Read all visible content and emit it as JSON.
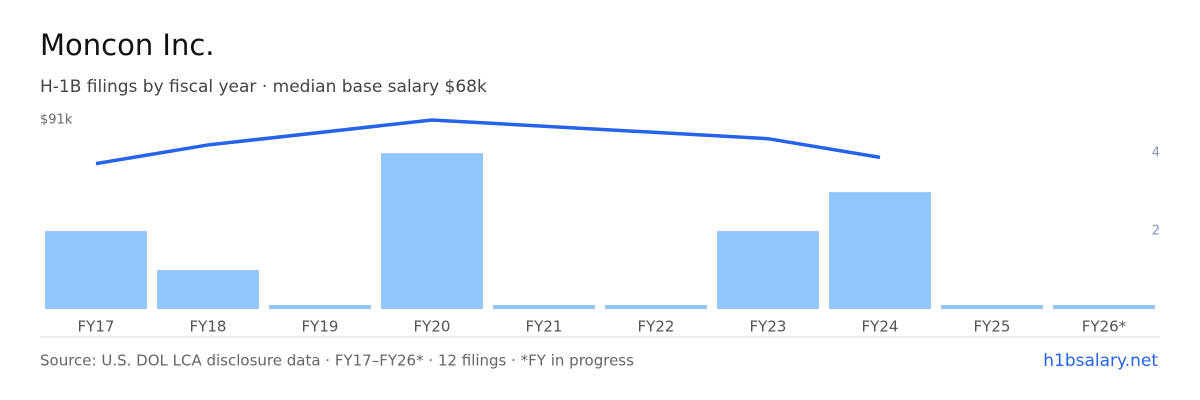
{
  "chart_data": {
    "type": "bar",
    "title": "Moncon Inc.",
    "subtitle": "H-1B filings by fiscal year · median base salary $68k",
    "categories": [
      "FY17",
      "FY18",
      "FY19",
      "FY20",
      "FY21",
      "FY22",
      "FY23",
      "FY24",
      "FY25",
      "FY26*"
    ],
    "series": [
      {
        "type": "bar",
        "axis": "y2",
        "color": "#93c5fd",
        "values": [
          2,
          1,
          0,
          4,
          0,
          0,
          2,
          3,
          0,
          0
        ]
      },
      {
        "type": "line",
        "color": "#2563eb",
        "x": [
          "FY17",
          "FY18",
          "FY20",
          "FY23",
          "FY24"
        ],
        "values": [
          70,
          79,
          91,
          82,
          73
        ]
      }
    ],
    "ylim": [
      0,
      91
    ],
    "yticks": [
      {
        "value": 91,
        "label": "$91k"
      }
    ],
    "y2lim": [
      0,
      4.85
    ],
    "y2ticks": [
      2,
      4
    ],
    "source": "Source: U.S. DOL LCA disclosure data · FY17–FY26* · 12 filings · *FY in progress",
    "brand": "h1bsalary.net"
  }
}
